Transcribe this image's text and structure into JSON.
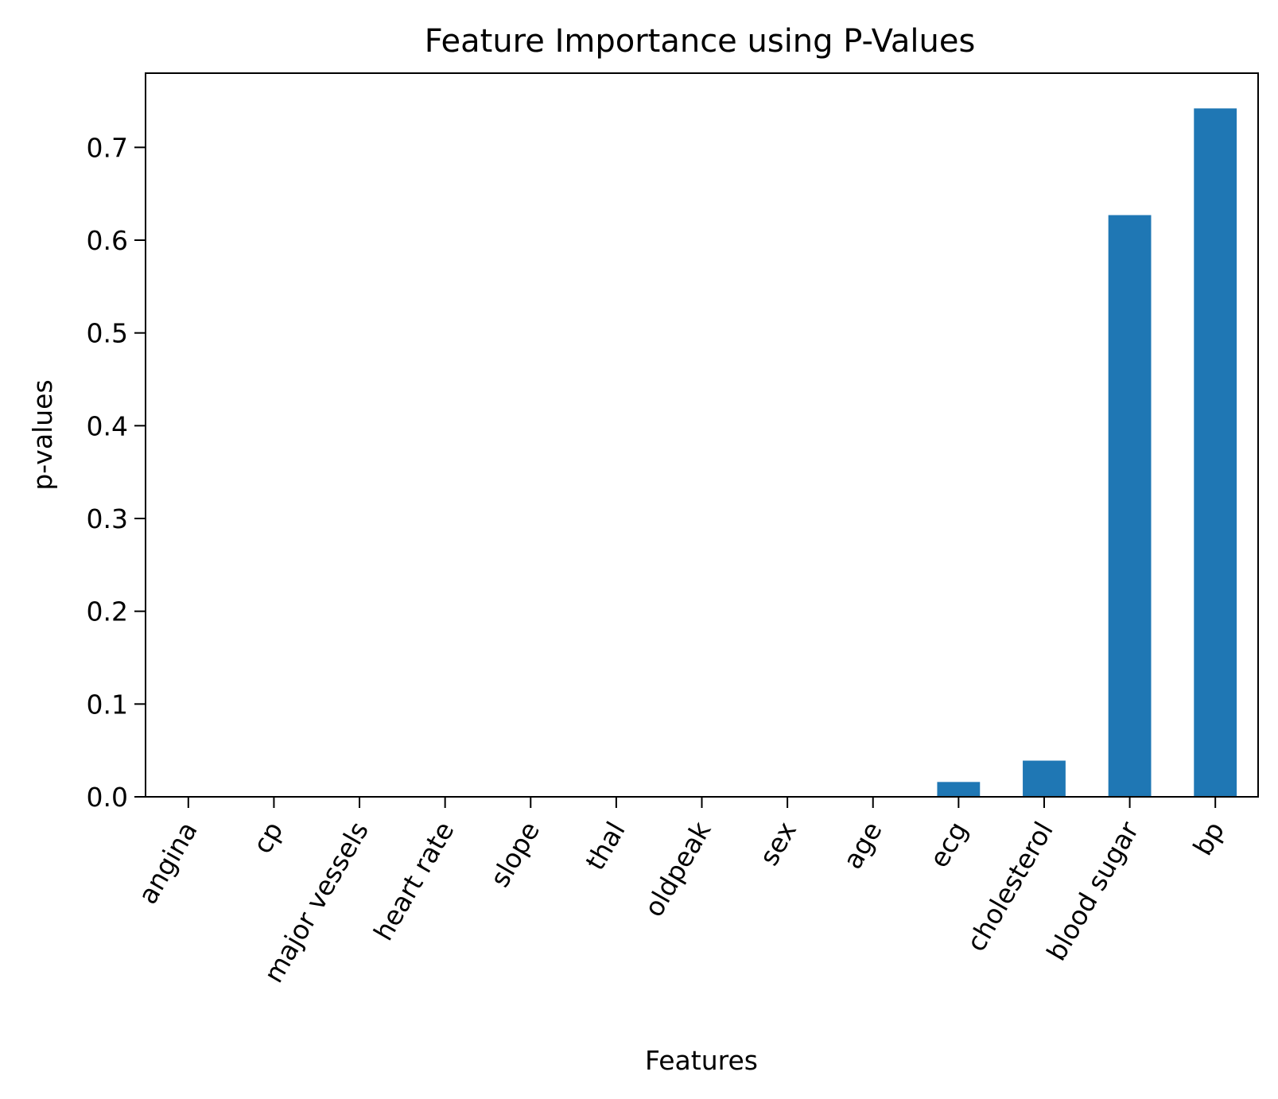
{
  "chart_data": {
    "type": "bar",
    "title": "Feature Importance using P-Values",
    "xlabel": "Features",
    "ylabel": "p-values",
    "categories": [
      "angina",
      "cp",
      "major vessels",
      "heart rate",
      "slope",
      "thal",
      "oldpeak",
      "sex",
      "age",
      "ecg",
      "cholesterol",
      "blood sugar",
      "bp"
    ],
    "values": [
      0.0,
      0.0,
      0.0,
      0.0,
      0.0,
      0.0,
      0.0,
      0.0,
      0.0,
      0.016,
      0.039,
      0.627,
      0.742
    ],
    "ylim": [
      0,
      0.78
    ],
    "yticks": [
      "0.0",
      "0.1",
      "0.2",
      "0.3",
      "0.4",
      "0.5",
      "0.6",
      "0.7"
    ],
    "bar_color": "#1f77b4",
    "grid": false,
    "legend": "none",
    "xtick_rotation": -60
  }
}
